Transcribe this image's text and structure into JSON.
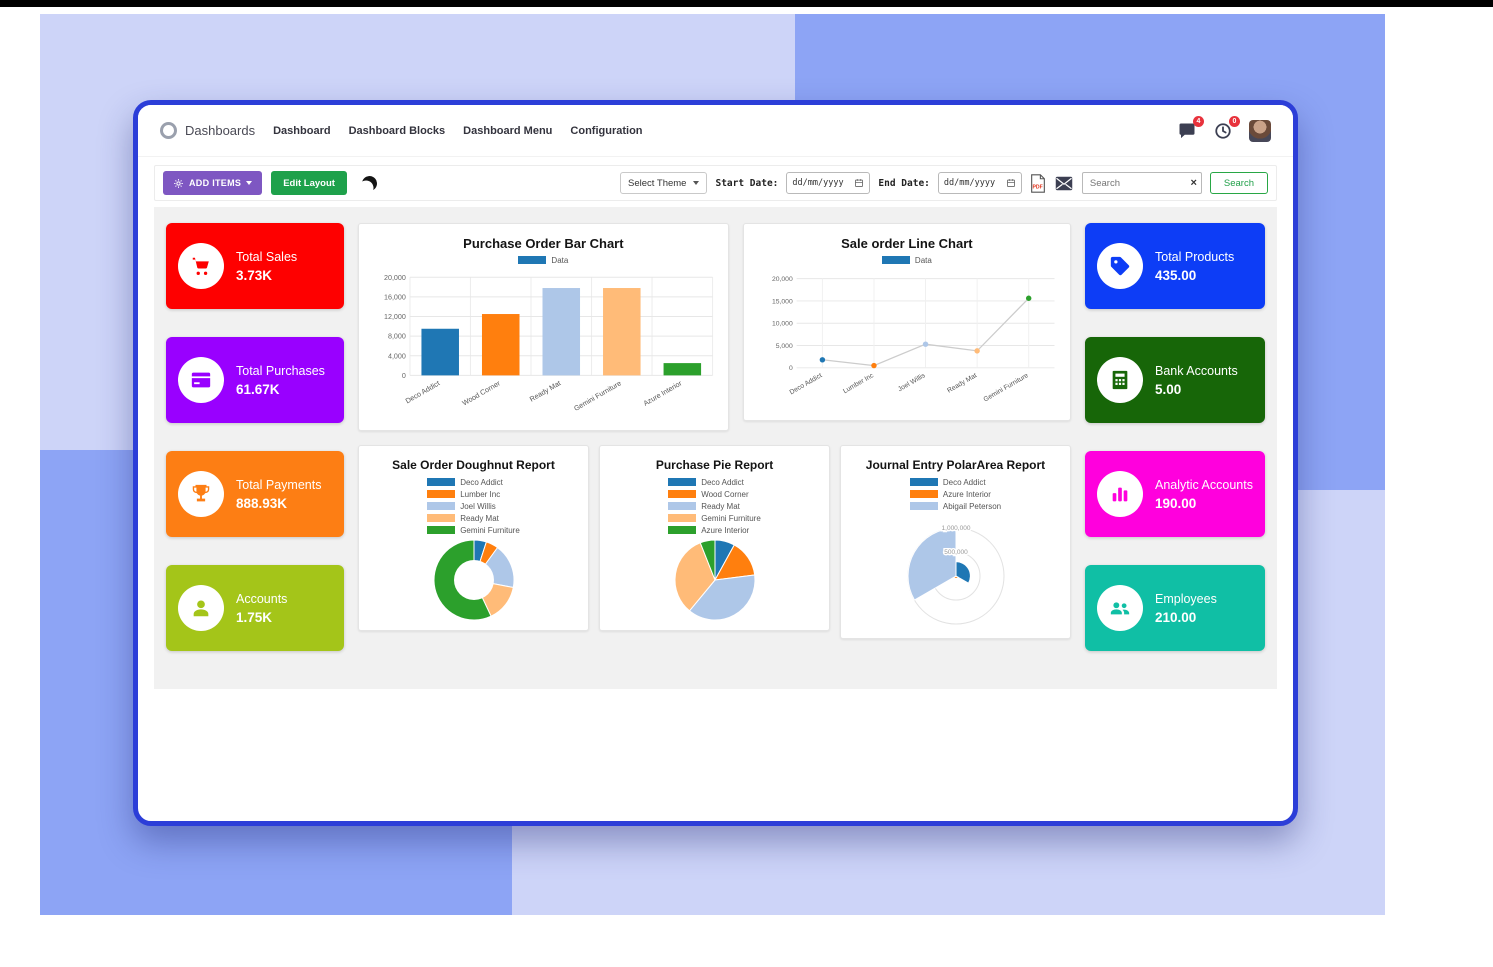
{
  "window": {
    "navbar": {
      "brand": "Dashboards",
      "menu": [
        "Dashboard",
        "Dashboard Blocks",
        "Dashboard Menu",
        "Configuration"
      ],
      "messages_badge": "4",
      "activity_badge": "0",
      "icons": [
        "chat-bubble",
        "clock",
        "avatar"
      ]
    },
    "toolbar": {
      "add_items_label": "ADD ITEMS",
      "edit_layout_label": "Edit Layout",
      "select_theme_label": "Select Theme",
      "start_date_label": "Start Date:",
      "end_date_label": "End Date:",
      "date_placeholder": "dd/mm/yyyy",
      "search_placeholder": "Search",
      "search_button_label": "Search",
      "icons": [
        "gear",
        "moon",
        "calendar",
        "pdf-document",
        "envelope",
        "clear-x"
      ]
    },
    "kpi_left": [
      {
        "label": "Total Sales",
        "value": "3.73K",
        "color": "#fe0000",
        "icon": "shopping-cart"
      },
      {
        "label": "Total Purchases",
        "value": "61.67K",
        "color": "#9900ff",
        "icon": "credit-card"
      },
      {
        "label": "Total Payments",
        "value": "888.93K",
        "color": "#fd7e14",
        "icon": "trophy"
      },
      {
        "label": "Accounts",
        "value": "1.75K",
        "color": "#a4c519",
        "icon": "user"
      }
    ],
    "kpi_right": [
      {
        "label": "Total Products",
        "value": "435.00",
        "color": "#0d3df6",
        "icon": "tag"
      },
      {
        "label": "Bank Accounts",
        "value": "5.00",
        "color": "#176608",
        "icon": "calculator"
      },
      {
        "label": "Analytic Accounts",
        "value": "190.00",
        "color": "#ff00dd",
        "icon": "bar-chart"
      },
      {
        "label": "Employees",
        "value": "210.00",
        "color": "#10bfa5",
        "icon": "users"
      }
    ]
  },
  "chart_data": [
    {
      "id": "purchase-bar",
      "type": "bar",
      "title": "Purchase Order Bar Chart",
      "legend": [
        {
          "label": "Data",
          "color": "#1f77b4"
        }
      ],
      "legend_position": "top",
      "categories": [
        "Deco Addict",
        "Wood Corner",
        "Ready Mat",
        "Gemini Furniture",
        "Azure Interior"
      ],
      "values": [
        9500,
        12500,
        17800,
        17800,
        2500
      ],
      "bar_colors": [
        "#1f77b4",
        "#ff7f0e",
        "#aec7e8",
        "#ffbb78",
        "#2ca02c"
      ],
      "yticks": [
        0,
        4000,
        8000,
        12000,
        16000,
        20000
      ],
      "ylim": [
        0,
        20000
      ],
      "grid": true
    },
    {
      "id": "sale-line",
      "type": "line",
      "title": "Sale order Line Chart",
      "legend": [
        {
          "label": "Data",
          "color": "#1f77b4"
        }
      ],
      "legend_position": "top",
      "categories": [
        "Deco Addict",
        "Lumber Inc",
        "Joel Willis",
        "Ready Mat",
        "Gemini Furniture"
      ],
      "values": [
        1800,
        500,
        5300,
        3800,
        15600
      ],
      "point_colors": [
        "#1f77b4",
        "#ff7f0e",
        "#aec7e8",
        "#ffbb78",
        "#2ca02c"
      ],
      "line_color": "#cccccc",
      "yticks": [
        0,
        5000,
        10000,
        15000,
        20000
      ],
      "ylim": [
        0,
        20000
      ],
      "grid": true
    },
    {
      "id": "sale-doughnut",
      "type": "doughnut",
      "title": "Sale Order Doughnut Report",
      "labels": [
        "Deco Addict",
        "Lumber Inc",
        "Joel Willis",
        "Ready Mat",
        "Gemini Furniture"
      ],
      "values": [
        5,
        5,
        18,
        15,
        57
      ],
      "colors": [
        "#1f77b4",
        "#ff7f0e",
        "#aec7e8",
        "#ffbb78",
        "#2ca02c"
      ],
      "legend_position": "top"
    },
    {
      "id": "purchase-pie",
      "type": "pie",
      "title": "Purchase Pie Report",
      "labels": [
        "Deco Addict",
        "Wood Corner",
        "Ready Mat",
        "Gemini Furniture",
        "Azure Interior"
      ],
      "values": [
        8,
        15,
        38,
        33,
        6
      ],
      "colors": [
        "#1f77b4",
        "#ff7f0e",
        "#aec7e8",
        "#ffbb78",
        "#2ca02c"
      ],
      "legend_position": "top"
    },
    {
      "id": "journal-polar",
      "type": "polar",
      "title": "Journal Entry PolarArea Report",
      "labels": [
        "Deco Addict",
        "Azure Interior",
        "Abigail Peterson"
      ],
      "values": [
        300000,
        50000,
        1000000
      ],
      "colors": [
        "#1f77b4",
        "#ff7f0e",
        "#aec7e8"
      ],
      "rticks": [
        500000,
        1000000
      ],
      "rmax": 1000000,
      "legend_position": "top"
    }
  ]
}
